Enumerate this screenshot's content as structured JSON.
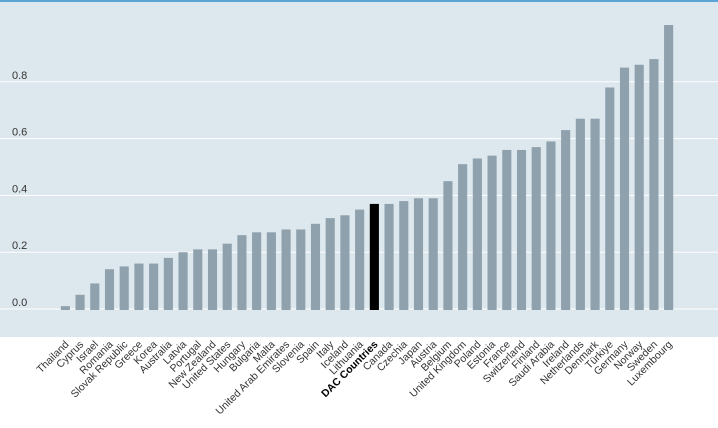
{
  "chart_data": {
    "type": "bar",
    "title": "",
    "xlabel": "",
    "ylabel": "",
    "ylim": [
      -0.1,
      1.0
    ],
    "yticks": [
      0.0,
      0.2,
      0.4,
      0.6,
      0.8
    ],
    "ytick_labels": [
      "0.0",
      "0.2",
      "0.4",
      "0.6",
      "0.8"
    ],
    "grid": "horizontal",
    "categories": [
      "Thailand",
      "Cyprus",
      "Israel",
      "Romania",
      "Slovak Republic",
      "Greece",
      "Korea",
      "Australia",
      "Latvia",
      "Portugal",
      "New Zealand",
      "United States",
      "Hungary",
      "Bulgaria",
      "Malta",
      "United Arab Emirates",
      "Slovenia",
      "Spain",
      "Italy",
      "Iceland",
      "Lithuania",
      "DAC Countries",
      "Canada",
      "Czechia",
      "Japan",
      "Austria",
      "Belgium",
      "United Kingdom",
      "Poland",
      "Estonia",
      "France",
      "Switzerland",
      "Finland",
      "Saudi Arabia",
      "Ireland",
      "Netherlands",
      "Denmark",
      "Türkiye",
      "Germany",
      "Norway",
      "Sweden",
      "Luxembourg"
    ],
    "values": [
      0.01,
      0.05,
      0.09,
      0.14,
      0.15,
      0.16,
      0.16,
      0.18,
      0.2,
      0.21,
      0.21,
      0.23,
      0.26,
      0.27,
      0.27,
      0.28,
      0.28,
      0.3,
      0.32,
      0.33,
      0.35,
      0.37,
      0.37,
      0.38,
      0.39,
      0.39,
      0.45,
      0.51,
      0.53,
      0.54,
      0.56,
      0.56,
      0.57,
      0.59,
      0.63,
      0.67,
      0.67,
      0.78,
      0.85,
      0.86,
      0.88,
      1.0
    ],
    "highlight": "DAC Countries",
    "colors": {
      "background": "#dde7ee",
      "bar": "#8fa1ad",
      "highlight_bar": "#000000",
      "grid": "#ffffff",
      "top_border": "#5aa4d6"
    }
  }
}
